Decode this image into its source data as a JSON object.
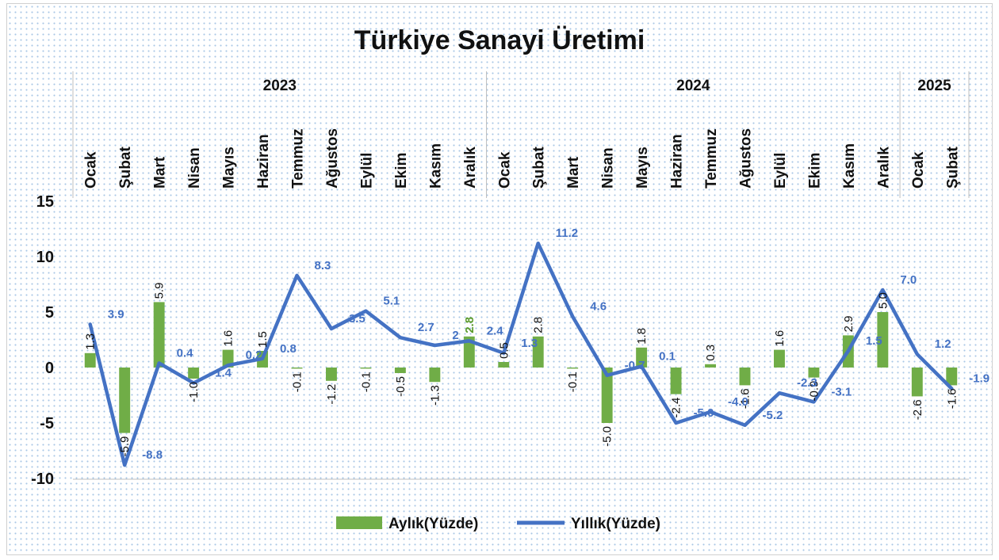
{
  "chart_data": {
    "type": "bar+line",
    "title": "Türkiye Sanayi Üretimi",
    "years": [
      {
        "label": "2023",
        "start": 0,
        "count": 12
      },
      {
        "label": "2024",
        "start": 12,
        "count": 12
      },
      {
        "label": "2025",
        "start": 24,
        "count": 2
      }
    ],
    "categories": [
      "Ocak",
      "Şubat",
      "Mart",
      "Nisan",
      "Mayıs",
      "Haziran",
      "Temmuz",
      "Ağustos",
      "Eylül",
      "Ekim",
      "Kasım",
      "Aralık",
      "Ocak",
      "Şubat",
      "Mart",
      "Nisan",
      "Mayıs",
      "Haziran",
      "Temmuz",
      "Ağustos",
      "Eylül",
      "Ekim",
      "Kasım",
      "Aralık",
      "Ocak",
      "Şubat"
    ],
    "y_ticks": [
      "15",
      "10",
      "5",
      "0",
      "-5",
      "-10"
    ],
    "ylim": [
      -10,
      15
    ],
    "series": [
      {
        "name": "Aylık(Yüzde)",
        "kind": "bar",
        "color": "#70ad47",
        "values": [
          1.3,
          -5.9,
          5.9,
          -1.0,
          1.6,
          1.5,
          -0.1,
          -1.2,
          -0.1,
          -0.5,
          -1.3,
          2.8,
          0.5,
          2.8,
          -0.1,
          -5.0,
          1.8,
          -2.4,
          0.3,
          -1.6,
          1.6,
          -0.9,
          2.9,
          5.0,
          -2.6,
          -1.6
        ],
        "labels": [
          "1.3",
          "-5.9",
          "5.9",
          "-1.0",
          "1.6",
          "1.5",
          "-0.1",
          "-1.2",
          "-0.1",
          "-0.5",
          "-1.3",
          "2.8",
          "0.5",
          "2.8",
          "-0.1",
          "-5.0",
          "1.8",
          "-2.4",
          "0.3",
          "-1.6",
          "1.6",
          "-0.9",
          "2.9",
          "5.0",
          "-2.6",
          "-1.6"
        ]
      },
      {
        "name": "Yıllık(Yüzde)",
        "kind": "line",
        "color": "#4472c4",
        "values": [
          3.9,
          -8.8,
          0.4,
          -1.4,
          0.2,
          0.8,
          8.3,
          3.5,
          5.1,
          2.7,
          2.0,
          2.4,
          1.3,
          11.2,
          4.6,
          -0.7,
          0.1,
          -5.0,
          -4.0,
          -5.2,
          -2.3,
          -3.1,
          1.5,
          7.0,
          1.2,
          -1.9
        ],
        "labels": [
          "3.9",
          "-8.8",
          "0.4",
          "-1.4",
          "0.2",
          "0.8",
          "8.3",
          "3.5",
          "5.1",
          "2.7",
          "2",
          "2.4",
          "1.3",
          "11.2",
          "4.6",
          "-0.7",
          "0.1",
          "-5.0",
          "-4.0",
          "-5.2",
          "-2.3",
          "-3.1",
          "1.5",
          "7.0",
          "1.2",
          "-1.9"
        ]
      }
    ],
    "legend_position": "bottom",
    "grid": false
  }
}
